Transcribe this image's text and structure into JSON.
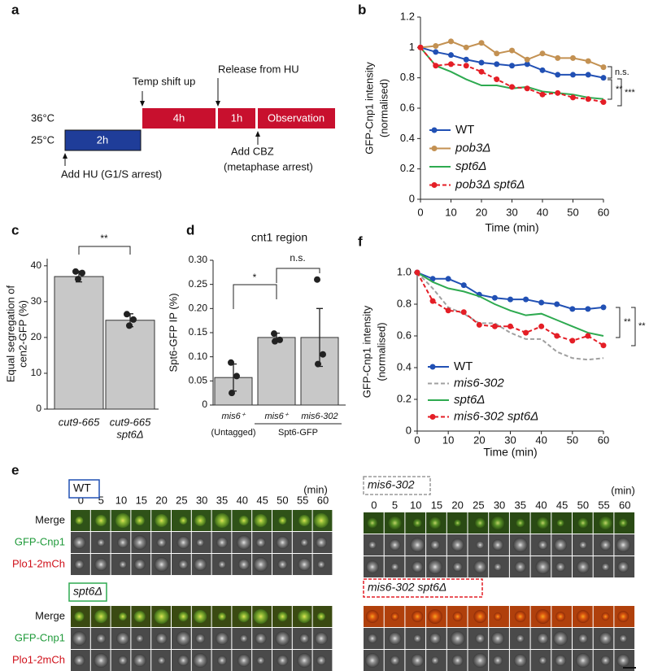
{
  "panel_labels": [
    "a",
    "b",
    "c",
    "d",
    "e",
    "f"
  ],
  "panel_a": {
    "temps": [
      "36°C",
      "25°C"
    ],
    "stages": [
      "2h",
      "4h",
      "1h",
      "Observation"
    ],
    "events": [
      "Temp shift up",
      "Release from HU",
      "Add CBZ",
      "(metaphase arrest)",
      "Add HU (G1/S arrest)"
    ]
  },
  "chart_data": [
    {
      "type": "line",
      "ylabel": [
        "GFP-Cnp1 intensity",
        "(normalised)"
      ],
      "xlabel": "Time (min)",
      "x": [
        0,
        5,
        10,
        15,
        20,
        25,
        30,
        35,
        40,
        45,
        50,
        55,
        60
      ],
      "xlim": [
        0,
        60
      ],
      "xticks": [
        0,
        10,
        20,
        30,
        40,
        50,
        60
      ],
      "ylim": [
        0,
        1.2
      ],
      "yticks": [
        0,
        0.2,
        0.4,
        0.6,
        0.8,
        1,
        1.2
      ],
      "series": [
        {
          "name": "WT",
          "color": "#2150b4",
          "marker": true,
          "dash": false,
          "italic": false,
          "values": [
            1,
            0.97,
            0.95,
            0.92,
            0.9,
            0.89,
            0.88,
            0.89,
            0.85,
            0.82,
            0.82,
            0.82,
            0.8
          ]
        },
        {
          "name": "pob3Δ",
          "color": "#c39152",
          "marker": true,
          "dash": false,
          "italic": true,
          "values": [
            1,
            1.01,
            1.04,
            1.0,
            1.03,
            0.96,
            0.98,
            0.92,
            0.96,
            0.93,
            0.93,
            0.91,
            0.87
          ]
        },
        {
          "name": "spt6Δ",
          "color": "#2eaa50",
          "marker": false,
          "dash": false,
          "italic": true,
          "values": [
            1,
            0.88,
            0.84,
            0.79,
            0.75,
            0.75,
            0.73,
            0.74,
            0.71,
            0.7,
            0.69,
            0.67,
            0.66
          ]
        },
        {
          "name": "pob3Δ spt6Δ",
          "color": "#e41e26",
          "marker": true,
          "dash": true,
          "italic": true,
          "values": [
            1,
            0.88,
            0.89,
            0.88,
            0.84,
            0.79,
            0.74,
            0.73,
            0.69,
            0.7,
            0.67,
            0.66,
            0.64
          ]
        }
      ],
      "annotations": [
        "n.s.",
        "**",
        "***"
      ]
    },
    {
      "type": "bar",
      "ylabel": [
        "Equal segregation of",
        "cen2-GFP (%)"
      ],
      "categories": [
        [
          "cut9-665"
        ],
        [
          "cut9-665",
          "spt6Δ"
        ]
      ],
      "values": [
        37,
        24.8
      ],
      "errors": [
        1.5,
        1.8
      ],
      "points": [
        [
          38.4,
          38,
          36.3
        ],
        [
          26.5,
          25,
          23.3
        ]
      ],
      "color": "#c8c8c8",
      "ylim": [
        0,
        42
      ],
      "yticks": [
        0,
        10,
        20,
        30,
        40
      ],
      "annotations": [
        "**"
      ]
    },
    {
      "type": "bar",
      "title": "cnt1 region",
      "ylabel": [
        "Spt6-GFP IP (%)"
      ],
      "categories": [
        "mis6⁺",
        "mis6⁺",
        "mis6-302"
      ],
      "groups": [
        "(Untagged)",
        "Spt6-GFP"
      ],
      "values": [
        0.057,
        0.14,
        0.14
      ],
      "errors": [
        0.028,
        0.009,
        0.06
      ],
      "points": [
        [
          0.088,
          0.06,
          0.025
        ],
        [
          0.148,
          0.135,
          0.132
        ],
        [
          0.26,
          0.105,
          0.085
        ]
      ],
      "color": "#c8c8c8",
      "ylim": [
        0,
        0.3
      ],
      "yticks": [
        0,
        0.05,
        {
          "value": 0.1,
          "label": "0.10"
        },
        0.15,
        {
          "value": 0.2,
          "label": "0.20"
        },
        0.25,
        {
          "value": 0.3,
          "label": "0.30"
        }
      ],
      "annotations": [
        "*",
        "n.s."
      ]
    },
    {
      "type": "line",
      "ylabel": [
        "GFP-Cnp1 intensity",
        "(normalised)"
      ],
      "xlabel": "Time (min)",
      "x": [
        0,
        5,
        10,
        15,
        20,
        25,
        30,
        35,
        40,
        45,
        50,
        55,
        60
      ],
      "xlim": [
        0,
        60
      ],
      "xticks": [
        0,
        10,
        20,
        30,
        40,
        50,
        60
      ],
      "ylim": [
        0,
        1
      ],
      "yticks": [
        0,
        0.2,
        0.4,
        0.6,
        0.8,
        {
          "value": 1,
          "label": "1.0"
        }
      ],
      "series": [
        {
          "name": "WT",
          "color": "#2150b4",
          "marker": true,
          "dash": false,
          "italic": false,
          "values": [
            1,
            0.96,
            0.96,
            0.92,
            0.86,
            0.84,
            0.83,
            0.83,
            0.81,
            0.8,
            0.77,
            0.77,
            0.78
          ]
        },
        {
          "name": "mis6-302",
          "color": "#a0a0a0",
          "marker": false,
          "dash": true,
          "italic": true,
          "values": [
            1,
            0.9,
            0.78,
            0.74,
            0.68,
            0.68,
            0.62,
            0.58,
            0.58,
            0.5,
            0.46,
            0.45,
            0.46
          ]
        },
        {
          "name": "spt6Δ",
          "color": "#2eaa50",
          "marker": false,
          "dash": false,
          "italic": true,
          "values": [
            1,
            0.94,
            0.9,
            0.88,
            0.85,
            0.8,
            0.76,
            0.73,
            0.74,
            0.7,
            0.66,
            0.62,
            0.6
          ]
        },
        {
          "name": "mis6-302 spt6Δ",
          "color": "#e41e26",
          "marker": true,
          "dash": true,
          "italic": true,
          "values": [
            1,
            0.82,
            0.76,
            0.75,
            0.67,
            0.66,
            0.66,
            0.62,
            0.66,
            0.6,
            0.57,
            0.6,
            0.54
          ]
        }
      ],
      "annotations": [
        "**",
        "**"
      ]
    }
  ],
  "panel_e": {
    "times": [
      0,
      5,
      10,
      15,
      20,
      25,
      30,
      35,
      40,
      45,
      50,
      55,
      60
    ],
    "unit": "(min)",
    "row_labels": [
      "Merge",
      "GFP-Cnp1",
      "Plo1-2mCh"
    ],
    "strains": [
      "WT",
      "spt6Δ",
      "mis6-302",
      "mis6-302 spt6Δ"
    ]
  }
}
